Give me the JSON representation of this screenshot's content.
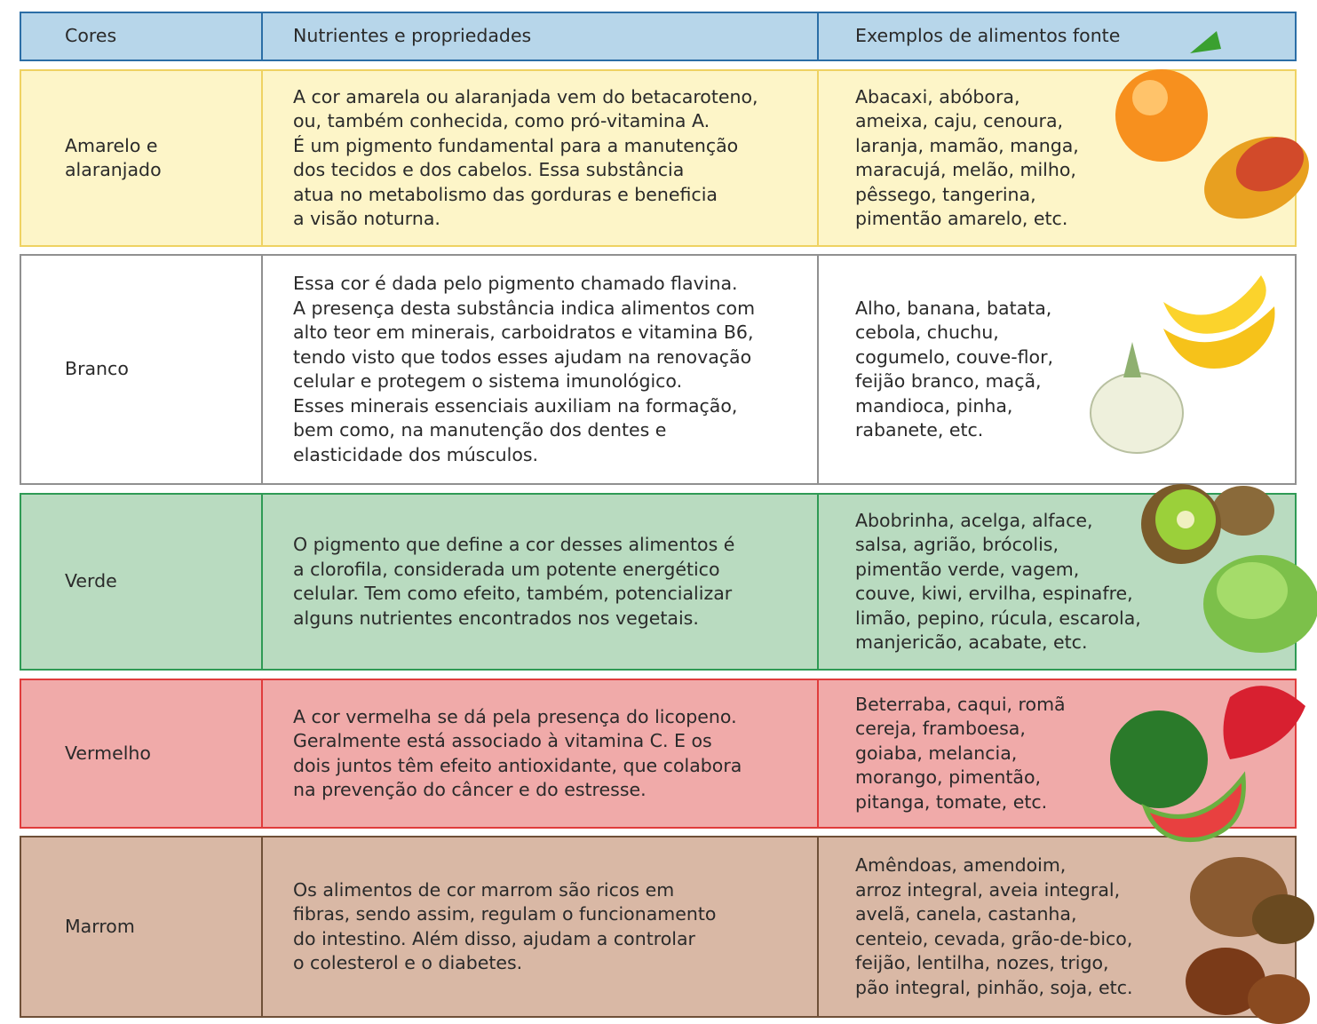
{
  "table": {
    "header": [
      "Cores",
      "Nutrientes e propriedades",
      "Exemplos de alimentos fonte"
    ],
    "rows": [
      {
        "color": [
          "Amarelo e",
          "alaranjado"
        ],
        "nutrients": [
          "A cor amarela ou alaranjada vem do betacaroteno,",
          "ou, também conhecida, como pró-vitamina A.",
          "É um pigmento fundamental para a manutenção",
          "dos tecidos e dos cabelos. Essa substância",
          "atua no metabolismo das gorduras e beneficia",
          "a visão noturna."
        ],
        "foods": [
          "Abacaxi, abóbora,",
          "ameixa, caju, cenoura,",
          "laranja, mamão, manga,",
          "maracujá, melão, milho,",
          "pêssego, tangerina,",
          "pimentão amarelo, etc."
        ]
      },
      {
        "color": [
          "Branco"
        ],
        "nutrients": [
          "Essa cor é dada pelo pigmento chamado flavina.",
          "A presença desta substância indica alimentos com",
          "alto teor em minerais, carboidratos e vitamina B6,",
          "tendo visto que todos esses ajudam na renovação",
          "celular e protegem o sistema imunológico.",
          "Esses minerais essenciais auxiliam na formação,",
          "bem como, na manutenção dos dentes e",
          "elasticidade dos músculos."
        ],
        "foods": [
          "Alho, banana, batata,",
          "cebola, chuchu,",
          "cogumelo, couve-flor,",
          "feijão branco, maçã,",
          "mandioca, pinha,",
          "rabanete, etc."
        ]
      },
      {
        "color": [
          "Verde"
        ],
        "nutrients": [
          "O pigmento que define a cor desses alimentos é",
          "a clorofila, considerada um potente energético",
          "celular. Tem como efeito, também, potencializar",
          "alguns nutrientes encontrados nos vegetais."
        ],
        "foods": [
          "Abobrinha, acelga, alface,",
          "salsa, agrião, brócolis,",
          "pimentão verde, vagem,",
          "couve, kiwi, ervilha, espinafre,",
          "limão, pepino, rúcula, escarola,",
          "manjericão, acabate, etc."
        ]
      },
      {
        "color": [
          "Vermelho"
        ],
        "nutrients": [
          "A cor vermelha se dá pela presença do licopeno.",
          "Geralmente está associado à vitamina C. E os",
          "dois juntos têm efeito antioxidante, que colabora",
          "na prevenção do câncer e do estresse."
        ],
        "foods": [
          "Beterraba, caqui, romã",
          "cereja, framboesa,",
          "goiaba, melancia,",
          "morango, pimentão,",
          "pitanga, tomate, etc."
        ]
      },
      {
        "color": [
          "Marrom"
        ],
        "nutrients": [
          "Os alimentos de cor marrom são ricos em",
          "fibras, sendo assim, regulam o funcionamento",
          "do intestino. Além disso, ajudam a controlar",
          "o colesterol e o diabetes."
        ],
        "foods": [
          "Amêndoas, amendoim,",
          "arroz integral, aveia integral,",
          "avelã, canela, castanha,",
          "centeio, cevada, grão-de-bico,",
          "feijão, lentilha, nozes, trigo,",
          "pão integral, pinhão, soja, etc."
        ]
      }
    ]
  }
}
